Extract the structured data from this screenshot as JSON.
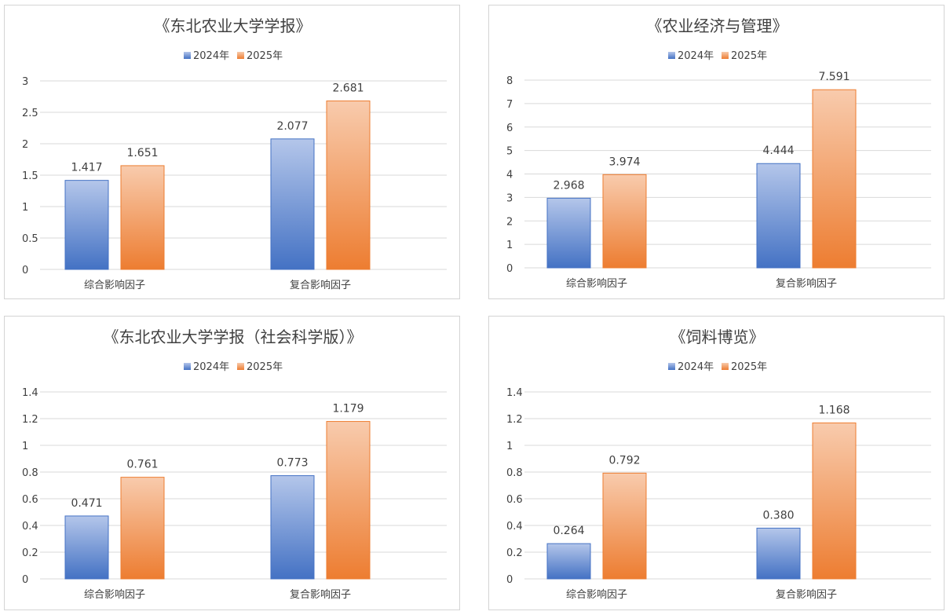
{
  "legend": {
    "series1": "2024年",
    "series2": "2025年"
  },
  "colors": {
    "blue_light": "#b4c6ea",
    "blue_dark": "#4472c4",
    "orange_light": "#f8cbad",
    "orange_dark": "#ed7d31",
    "grid": "#d9d9d9"
  },
  "chart_data": [
    {
      "type": "bar",
      "title": "《东北农业大学学报》",
      "categories": [
        "综合影响因子",
        "复合影响因子"
      ],
      "series": [
        {
          "name": "2024年",
          "values": [
            1.417,
            2.077
          ],
          "labels": [
            "1.417",
            "2.077"
          ]
        },
        {
          "name": "2025年",
          "values": [
            1.651,
            2.681
          ],
          "labels": [
            "1.651",
            "2.681"
          ]
        }
      ],
      "ylim": [
        0,
        3
      ],
      "yticks": [
        "0",
        "0.5",
        "1",
        "1.5",
        "2",
        "2.5",
        "3"
      ],
      "grid": true,
      "legend_position": "top"
    },
    {
      "type": "bar",
      "title": "《农业经济与管理》",
      "categories": [
        "综合影响因子",
        "复合影响因子"
      ],
      "series": [
        {
          "name": "2024年",
          "values": [
            2.968,
            4.444
          ],
          "labels": [
            "2.968",
            "4.444"
          ]
        },
        {
          "name": "2025年",
          "values": [
            3.974,
            7.591
          ],
          "labels": [
            "3.974",
            "7.591"
          ]
        }
      ],
      "ylim": [
        0,
        8
      ],
      "yticks": [
        "0",
        "1",
        "2",
        "3",
        "4",
        "5",
        "6",
        "7",
        "8"
      ],
      "grid": true,
      "legend_position": "top"
    },
    {
      "type": "bar",
      "title": "《东北农业大学学报（社会科学版）》",
      "categories": [
        "综合影响因子",
        "复合影响因子"
      ],
      "series": [
        {
          "name": "2024年",
          "values": [
            0.471,
            0.773
          ],
          "labels": [
            "0.471",
            "0.773"
          ]
        },
        {
          "name": "2025年",
          "values": [
            0.761,
            1.179
          ],
          "labels": [
            "0.761",
            "1.179"
          ]
        }
      ],
      "ylim": [
        0,
        1.4
      ],
      "yticks": [
        "0",
        "0.2",
        "0.4",
        "0.6",
        "0.8",
        "1",
        "1.2",
        "1.4"
      ],
      "grid": true,
      "legend_position": "top"
    },
    {
      "type": "bar",
      "title": "《饲料博览》",
      "categories": [
        "综合影响因子",
        "复合影响因子"
      ],
      "series": [
        {
          "name": "2024年",
          "values": [
            0.264,
            0.38
          ],
          "labels": [
            "0.264",
            "0.380"
          ]
        },
        {
          "name": "2025年",
          "values": [
            0.792,
            1.168
          ],
          "labels": [
            "0.792",
            "1.168"
          ]
        }
      ],
      "ylim": [
        0,
        1.4
      ],
      "yticks": [
        "0",
        "0.2",
        "0.4",
        "0.6",
        "0.8",
        "1",
        "1.2",
        "1.4"
      ],
      "grid": true,
      "legend_position": "top"
    }
  ]
}
